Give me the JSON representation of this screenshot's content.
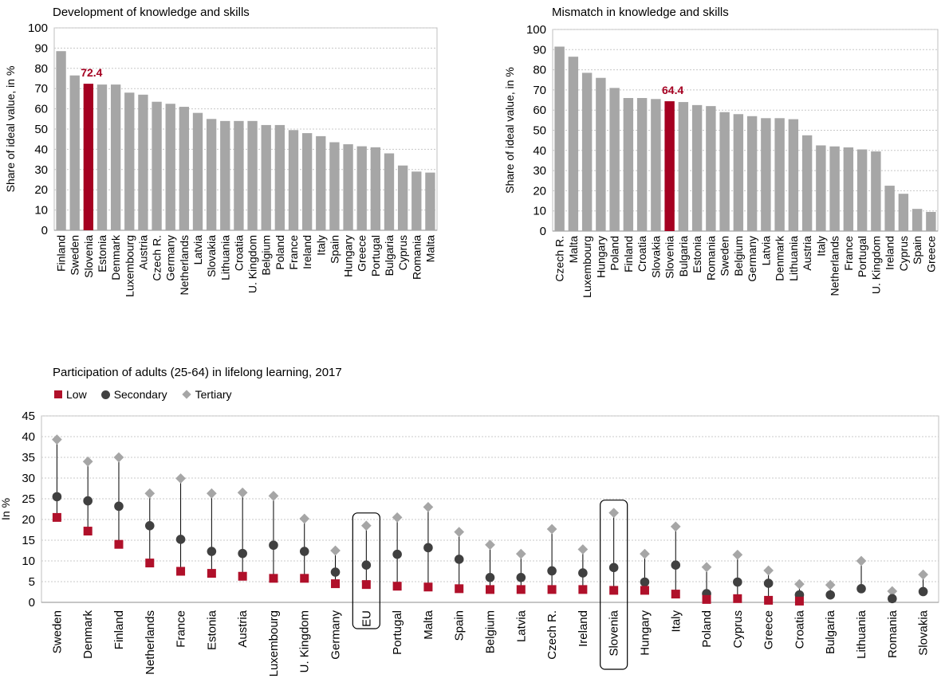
{
  "colors": {
    "bar": "#a6a6a6",
    "highlight": "#a50021",
    "low": "#b0102a",
    "secondary": "#404040",
    "tertiary": "#a6a6a6",
    "stem": "#000000",
    "grid": "#c8c8c8"
  },
  "chart_data": [
    {
      "type": "bar",
      "title": "Development of knowledge and skills",
      "ylabel": "Share of ideal value, in %",
      "ylim": [
        0,
        100
      ],
      "yticks": [
        0,
        10,
        20,
        30,
        40,
        50,
        60,
        70,
        80,
        90,
        100
      ],
      "grid": true,
      "categories": [
        "Finland",
        "Sweden",
        "Slovenia",
        "Estonia",
        "Denmark",
        "Luxembourg",
        "Austria",
        "Czech R.",
        "Germany",
        "Netherlands",
        "Latvia",
        "Slovakia",
        "Lithuania",
        "Croatia",
        "U. Kingdom",
        "Belgium",
        "Poland",
        "France",
        "Ireland",
        "Italy",
        "Spain",
        "Hungary",
        "Greece",
        "Portugal",
        "Bulgaria",
        "Cyprus",
        "Romania",
        "Malta"
      ],
      "values": [
        88.5,
        76.5,
        72.4,
        72,
        72,
        68,
        67,
        63.5,
        62.5,
        61,
        58,
        55,
        54,
        54,
        54,
        52,
        52,
        49.5,
        48,
        46.5,
        43.5,
        42.5,
        41.5,
        41,
        38,
        32,
        29,
        28.5
      ],
      "highlight": "Slovenia",
      "highlight_label": "72.4"
    },
    {
      "type": "bar",
      "title": "Mismatch in knowledge and skills",
      "ylabel": "Share of ideal value, in %",
      "ylim": [
        0,
        100
      ],
      "yticks": [
        0,
        10,
        20,
        30,
        40,
        50,
        60,
        70,
        80,
        90,
        100
      ],
      "grid": true,
      "categories": [
        "Czech R.",
        "Malta",
        "Luxembourg",
        "Hungary",
        "Poland",
        "Finland",
        "Croatia",
        "Slovakia",
        "Slovenia",
        "Bulgaria",
        "Estonia",
        "Romania",
        "Sweden",
        "Belgium",
        "Germany",
        "Latvia",
        "Denmark",
        "Lithuania",
        "Austria",
        "Italy",
        "Netherlands",
        "France",
        "Portugal",
        "U. Kingdom",
        "Ireland",
        "Cyprus",
        "Spain",
        "Greece"
      ],
      "values": [
        91.5,
        86.5,
        78.5,
        76,
        71,
        66,
        66,
        65.5,
        64.4,
        64,
        62.5,
        62,
        59,
        58,
        57,
        56,
        56,
        55.5,
        47.5,
        42.5,
        42,
        41.5,
        40.5,
        39.5,
        22.5,
        18.5,
        11,
        9.5
      ],
      "highlight": "Slovenia",
      "highlight_label": "64.4"
    },
    {
      "type": "scatter",
      "title": "Participation of adults (25-64) in lifelong learning, 2017",
      "ylabel": "In %",
      "ylim": [
        0,
        45
      ],
      "yticks": [
        0,
        5,
        10,
        15,
        20,
        25,
        30,
        35,
        40,
        45
      ],
      "grid": true,
      "legend": "top-left",
      "categories": [
        "Sweden",
        "Denmark",
        "Finland",
        "Netherlands",
        "France",
        "Estonia",
        "Austria",
        "Luxembourg",
        "U. Kingdom",
        "Germany",
        "EU",
        "Portugal",
        "Malta",
        "Spain",
        "Belgium",
        "Latvia",
        "Czech R.",
        "Ireland",
        "Slovenia",
        "Hungary",
        "Italy",
        "Poland",
        "Cyprus",
        "Greece",
        "Croatia",
        "Bulgaria",
        "Lithuania",
        "Romania",
        "Slovakia"
      ],
      "boxed": [
        "EU",
        "Slovenia"
      ],
      "series": [
        {
          "name": "Low",
          "values": [
            20.5,
            17.2,
            14,
            9.5,
            7.5,
            7,
            6.3,
            5.8,
            5.8,
            4.5,
            4.3,
            3.9,
            3.7,
            3.3,
            3.1,
            3.1,
            3.1,
            3.1,
            2.9,
            2.9,
            2,
            0.7,
            0.9,
            0.5,
            0.3,
            null,
            null,
            null,
            null
          ]
        },
        {
          "name": "Secondary",
          "values": [
            25.5,
            24.5,
            23.2,
            18.5,
            15.2,
            12.3,
            11.8,
            13.8,
            12.3,
            7.3,
            9,
            11.6,
            13.2,
            10.4,
            6,
            6,
            7.6,
            7.1,
            8.4,
            4.9,
            9,
            2.1,
            4.9,
            4.6,
            1.8,
            1.8,
            3.3,
            0.9,
            2.6
          ]
        },
        {
          "name": "Tertiary",
          "values": [
            39.3,
            34,
            35,
            26.3,
            29.9,
            26.3,
            26.5,
            25.7,
            20.2,
            12.5,
            18.5,
            20.5,
            23,
            17,
            13.9,
            11.7,
            17.7,
            12.8,
            21.6,
            11.7,
            18.3,
            8.5,
            11.5,
            7.7,
            4.4,
            4.2,
            10,
            2.7,
            6.7
          ]
        }
      ]
    }
  ]
}
